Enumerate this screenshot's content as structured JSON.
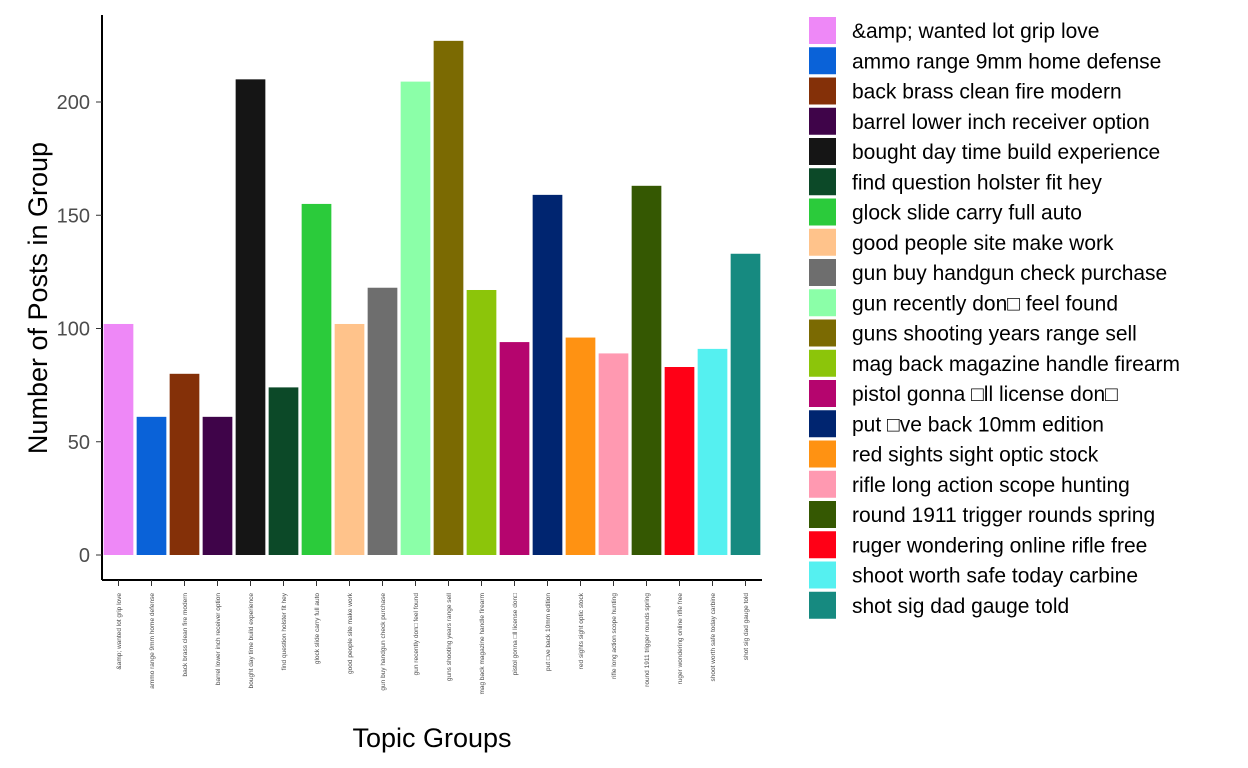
{
  "chart_data": {
    "type": "bar",
    "title": "",
    "xlabel": "Topic Groups",
    "ylabel": "Number of Posts in Group",
    "ylim": [
      0,
      235
    ],
    "yticks": [
      0,
      50,
      100,
      150,
      200
    ],
    "grid": false,
    "legend_position": "right",
    "legend_title": "",
    "categories": [
      "&amp; wanted lot grip love",
      "ammo range 9mm home defense",
      "back brass clean fire modern",
      "barrel lower inch receiver option",
      "bought day time build experience",
      "find question holster fit hey",
      "glock slide carry full auto",
      "good people site make work",
      "gun buy handgun check purchase",
      "gun recently don□ feel found",
      "guns shooting years range sell",
      "mag back magazine handle firearm",
      "pistol gonna □ll license don□",
      "put □ve back 10mm edition",
      "red sights sight optic stock",
      "rifle long action scope hunting",
      "round 1911 trigger rounds spring",
      "ruger wondering online rifle free",
      "shoot worth safe today carbine",
      "shot sig dad gauge told"
    ],
    "values": [
      102,
      61,
      80,
      61,
      210,
      74,
      155,
      102,
      118,
      209,
      227,
      117,
      94,
      159,
      96,
      89,
      163,
      83,
      91,
      133
    ],
    "colors": [
      "#EE88F7",
      "#0A62D8",
      "#843008",
      "#3F0449",
      "#151515",
      "#0C4928",
      "#2BCB3B",
      "#FFC38B",
      "#6E6E6E",
      "#8BFFA8",
      "#7B6A02",
      "#8CC50A",
      "#B5056E",
      "#002570",
      "#FF9212",
      "#FF99B1",
      "#355802",
      "#FF0016",
      "#55F0F0",
      "#168A80"
    ]
  }
}
